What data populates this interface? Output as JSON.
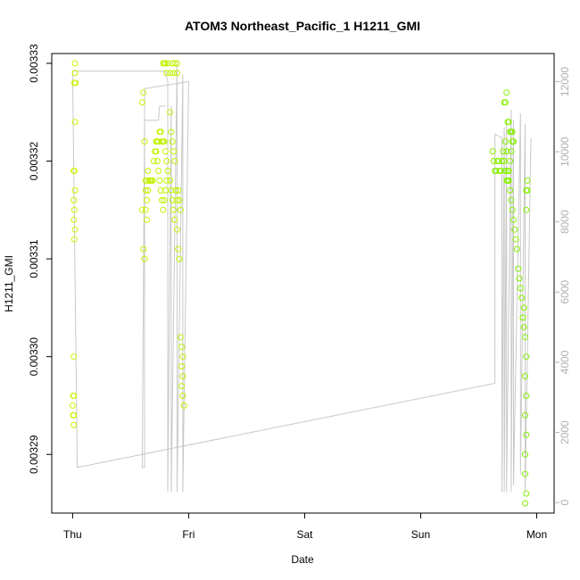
{
  "chart_data": {
    "type": "scatter",
    "title": "ATOM3 Northeast_Pacific_1 H1211_GMI",
    "xlabel": "Date",
    "ylabel": "H1211_GMI",
    "x_ticks": [
      {
        "label": "Thu",
        "day": 0
      },
      {
        "label": "Fri",
        "day": 1
      },
      {
        "label": "Sat",
        "day": 2
      },
      {
        "label": "Sun",
        "day": 3
      },
      {
        "label": "Mon",
        "day": 4
      }
    ],
    "xlim_days": [
      -0.18,
      4.15
    ],
    "ylim_left": [
      0.003284,
      0.003331
    ],
    "y_ticks_left": [
      0.00329,
      0.0033,
      0.00331,
      0.00332,
      0.00333
    ],
    "y_tick_labels_left": [
      "0.00329",
      "0.00330",
      "0.00331",
      "0.00332",
      "0.00333"
    ],
    "ylim_right": [
      -300,
      12800
    ],
    "y_ticks_right": [
      0,
      2000,
      4000,
      6000,
      8000,
      10000,
      12000
    ],
    "y_tick_labels_right": [
      "0",
      "2000",
      "4000",
      "6000",
      "8000",
      "10000",
      "12000"
    ],
    "colors": {
      "points_start": "#d4f200",
      "points_end": "#7ef000",
      "altitude_line": "#c8c8c8",
      "axis": "#000000",
      "right_axis": "#b0b0b0"
    },
    "series": [
      {
        "role": "H1211_GMI mixing ratio (left axis), open circles",
        "points": [
          [
            0.02,
            0.00333
          ],
          [
            0.02,
            0.003329
          ],
          [
            0.025,
            0.003328
          ],
          [
            0.015,
            0.003328
          ],
          [
            0.02,
            0.003324
          ],
          [
            0.01,
            0.003319
          ],
          [
            0.015,
            0.003319
          ],
          [
            0.02,
            0.003317
          ],
          [
            0.01,
            0.003316
          ],
          [
            0.015,
            0.003315
          ],
          [
            0.01,
            0.003314
          ],
          [
            0.02,
            0.003313
          ],
          [
            0.015,
            0.003312
          ],
          [
            0.01,
            0.0033
          ],
          [
            0.005,
            0.003296
          ],
          [
            0.01,
            0.003296
          ],
          [
            0.0,
            0.003295
          ],
          [
            0.01,
            0.003294
          ],
          [
            0.005,
            0.003294
          ],
          [
            0.01,
            0.003293
          ],
          [
            0.6,
            0.003326
          ],
          [
            0.61,
            0.003327
          ],
          [
            0.62,
            0.003322
          ],
          [
            0.6,
            0.003315
          ],
          [
            0.61,
            0.003311
          ],
          [
            0.62,
            0.00331
          ],
          [
            0.63,
            0.003318
          ],
          [
            0.64,
            0.003318
          ],
          [
            0.65,
            0.003319
          ],
          [
            0.63,
            0.003317
          ],
          [
            0.64,
            0.003316
          ],
          [
            0.63,
            0.003315
          ],
          [
            0.64,
            0.003314
          ],
          [
            0.65,
            0.003317
          ],
          [
            0.66,
            0.003318
          ],
          [
            0.67,
            0.003318
          ],
          [
            0.68,
            0.003318
          ],
          [
            0.69,
            0.003318
          ],
          [
            0.7,
            0.00332
          ],
          [
            0.71,
            0.003321
          ],
          [
            0.72,
            0.003322
          ],
          [
            0.73,
            0.003322
          ],
          [
            0.74,
            0.003322
          ],
          [
            0.75,
            0.003323
          ],
          [
            0.76,
            0.003323
          ],
          [
            0.77,
            0.003322
          ],
          [
            0.78,
            0.003322
          ],
          [
            0.79,
            0.003322
          ],
          [
            0.8,
            0.003321
          ],
          [
            0.81,
            0.00332
          ],
          [
            0.72,
            0.003321
          ],
          [
            0.73,
            0.00332
          ],
          [
            0.74,
            0.003319
          ],
          [
            0.75,
            0.003318
          ],
          [
            0.76,
            0.003317
          ],
          [
            0.77,
            0.003316
          ],
          [
            0.78,
            0.003315
          ],
          [
            0.79,
            0.003316
          ],
          [
            0.8,
            0.003317
          ],
          [
            0.81,
            0.003318
          ],
          [
            0.82,
            0.003319
          ],
          [
            0.78,
            0.00333
          ],
          [
            0.79,
            0.00333
          ],
          [
            0.8,
            0.00333
          ],
          [
            0.81,
            0.003329
          ],
          [
            0.82,
            0.00333
          ],
          [
            0.84,
            0.003329
          ],
          [
            0.86,
            0.00333
          ],
          [
            0.87,
            0.003329
          ],
          [
            0.88,
            0.00333
          ],
          [
            0.9,
            0.00333
          ],
          [
            0.9,
            0.003329
          ],
          [
            0.84,
            0.003325
          ],
          [
            0.85,
            0.003323
          ],
          [
            0.86,
            0.003322
          ],
          [
            0.87,
            0.003321
          ],
          [
            0.88,
            0.00332
          ],
          [
            0.84,
            0.003318
          ],
          [
            0.85,
            0.003317
          ],
          [
            0.86,
            0.003316
          ],
          [
            0.87,
            0.003315
          ],
          [
            0.88,
            0.003314
          ],
          [
            0.89,
            0.003317
          ],
          [
            0.9,
            0.003316
          ],
          [
            0.91,
            0.003317
          ],
          [
            0.92,
            0.003316
          ],
          [
            0.93,
            0.003315
          ],
          [
            0.9,
            0.003313
          ],
          [
            0.91,
            0.003311
          ],
          [
            0.92,
            0.00331
          ],
          [
            0.93,
            0.003302
          ],
          [
            0.94,
            0.003301
          ],
          [
            0.95,
            0.0033
          ],
          [
            0.94,
            0.003299
          ],
          [
            0.95,
            0.003298
          ],
          [
            0.94,
            0.003297
          ],
          [
            0.95,
            0.003296
          ],
          [
            0.96,
            0.003295
          ],
          [
            3.62,
            0.003321
          ],
          [
            3.63,
            0.00332
          ],
          [
            3.64,
            0.003319
          ],
          [
            3.65,
            0.003319
          ],
          [
            3.66,
            0.00332
          ],
          [
            3.67,
            0.00332
          ],
          [
            3.68,
            0.003319
          ],
          [
            3.69,
            0.003319
          ],
          [
            3.7,
            0.00332
          ],
          [
            3.71,
            0.003321
          ],
          [
            3.72,
            0.00332
          ],
          [
            3.73,
            0.003319
          ],
          [
            3.74,
            0.003318
          ],
          [
            3.75,
            0.003318
          ],
          [
            3.76,
            0.003319
          ],
          [
            3.77,
            0.00332
          ],
          [
            3.78,
            0.003321
          ],
          [
            3.79,
            0.003322
          ],
          [
            3.72,
            0.003326
          ],
          [
            3.73,
            0.003326
          ],
          [
            3.74,
            0.003327
          ],
          [
            3.75,
            0.003324
          ],
          [
            3.76,
            0.003324
          ],
          [
            3.77,
            0.003323
          ],
          [
            3.78,
            0.003323
          ],
          [
            3.79,
            0.003323
          ],
          [
            3.8,
            0.003322
          ],
          [
            3.73,
            0.003322
          ],
          [
            3.74,
            0.003321
          ],
          [
            3.75,
            0.003319
          ],
          [
            3.76,
            0.003318
          ],
          [
            3.77,
            0.003317
          ],
          [
            3.78,
            0.003316
          ],
          [
            3.79,
            0.003315
          ],
          [
            3.8,
            0.003314
          ],
          [
            3.81,
            0.003313
          ],
          [
            3.82,
            0.003312
          ],
          [
            3.83,
            0.003311
          ],
          [
            3.84,
            0.003309
          ],
          [
            3.85,
            0.003308
          ],
          [
            3.86,
            0.003307
          ],
          [
            3.87,
            0.003306
          ],
          [
            3.88,
            0.003304
          ],
          [
            3.89,
            0.003305
          ],
          [
            3.88,
            0.003304
          ],
          [
            3.89,
            0.003303
          ],
          [
            3.9,
            0.003302
          ],
          [
            3.91,
            0.0033
          ],
          [
            3.9,
            0.003298
          ],
          [
            3.91,
            0.003296
          ],
          [
            3.9,
            0.003294
          ],
          [
            3.91,
            0.003292
          ],
          [
            3.9,
            0.00329
          ],
          [
            3.9,
            0.003288
          ],
          [
            3.91,
            0.003286
          ],
          [
            3.9,
            0.003285
          ],
          [
            3.92,
            0.003318
          ],
          [
            3.91,
            0.003317
          ],
          [
            3.92,
            0.003317
          ],
          [
            3.91,
            0.003315
          ]
        ]
      },
      {
        "role": "altitude profile (right axis), grey line",
        "points": [
          [
            0.0,
            12300
          ],
          [
            0.0,
            12200
          ],
          [
            0.04,
            1000
          ],
          [
            3.64,
            3400
          ],
          [
            3.64,
            10500
          ],
          [
            3.7,
            10400
          ],
          [
            3.7,
            300
          ],
          [
            3.72,
            10700
          ],
          [
            3.72,
            300
          ],
          [
            3.74,
            10900
          ],
          [
            3.74,
            300
          ],
          [
            3.78,
            11200
          ],
          [
            3.78,
            300
          ],
          [
            3.8,
            10900
          ],
          [
            3.8,
            500
          ],
          [
            3.86,
            11100
          ],
          [
            3.86,
            800
          ],
          [
            3.9,
            10800
          ],
          [
            3.9,
            300
          ],
          [
            3.95,
            10400
          ]
        ],
        "points_thursday_leg": [
          [
            0.0,
            12300
          ],
          [
            0.8,
            12300
          ],
          [
            0.82,
            12000
          ],
          [
            0.82,
            300
          ],
          [
            0.85,
            11300
          ],
          [
            0.85,
            300
          ],
          [
            0.9,
            12500
          ],
          [
            0.9,
            300
          ],
          [
            0.95,
            12200
          ],
          [
            0.95,
            300
          ],
          [
            1.0,
            12000
          ],
          [
            0.62,
            11800
          ],
          [
            0.62,
            1000
          ],
          [
            0.6,
            1000
          ],
          [
            0.62,
            10900
          ],
          [
            0.74,
            10900
          ],
          [
            0.75,
            11300
          ],
          [
            0.8,
            11300
          ]
        ]
      }
    ]
  }
}
